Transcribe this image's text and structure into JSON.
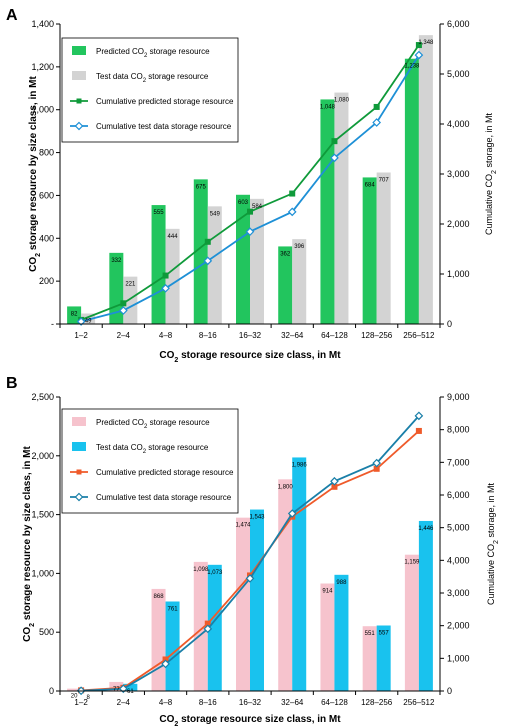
{
  "chart_data": [
    {
      "panel": "A",
      "type": "bar",
      "categories": [
        "1–2",
        "2–4",
        "4–8",
        "8–16",
        "16–32",
        "32–64",
        "64–128",
        "128–256",
        "256–512"
      ],
      "series": [
        {
          "name": "Predicted CO2 storage resource",
          "kind": "bar",
          "axis": "left",
          "color": "#22c55e",
          "values": [
            82,
            332,
            555,
            675,
            603,
            362,
            1048,
            684,
            1238
          ],
          "labels": [
            "82",
            "332",
            "555",
            "675",
            "603",
            "362",
            "1,048",
            "684",
            "1,238"
          ]
        },
        {
          "name": "Test data CO2 storage resource",
          "kind": "bar",
          "axis": "left",
          "color": "#d3d3d3",
          "values": [
            49,
            221,
            444,
            549,
            584,
            396,
            1080,
            707,
            1348
          ],
          "labels": [
            "49",
            "221",
            "444",
            "549",
            "584",
            "396",
            "1,080",
            "707",
            "1,348"
          ]
        },
        {
          "name": "Cumulative predicted storage resource",
          "kind": "line",
          "axis": "right",
          "color": "#0f9a3a",
          "marker": "square",
          "values": [
            82,
            414,
            969,
            1644,
            2247,
            2609,
            3657,
            4341,
            5579
          ]
        },
        {
          "name": "Cumulative test data storage resource",
          "kind": "line",
          "axis": "right",
          "color": "#1e90d6",
          "marker": "diamond",
          "values": [
            49,
            270,
            714,
            1263,
            1847,
            2243,
            3323,
            4030,
            5378
          ]
        }
      ],
      "ylim": [
        0,
        1400
      ],
      "y2lim": [
        0,
        6000
      ],
      "yticks": [
        "-",
        "200",
        "400",
        "600",
        "800",
        "1,000",
        "1,200",
        "1,400"
      ],
      "y2ticks": [
        "0",
        "1,000",
        "2,000",
        "3,000",
        "4,000",
        "5,000",
        "6,000"
      ],
      "xlabel": "CO2 storage resource size class, in Mt",
      "ylabel": "CO2 storage resource by size class, in Mt",
      "y2label": "Cumulative CO2 storage, in Mt",
      "legend": "top-left",
      "grid": false
    },
    {
      "panel": "B",
      "type": "bar",
      "categories": [
        "1–2",
        "2–4",
        "4–8",
        "8–16",
        "16–32",
        "32–64",
        "64–128",
        "128–256",
        "256–512"
      ],
      "series": [
        {
          "name": "Predicted CO2 storage resource",
          "kind": "bar",
          "axis": "left",
          "color": "#f6c3cd",
          "values": [
            20,
            77,
            868,
            1098,
            1474,
            1800,
            914,
            551,
            1159
          ],
          "labels": [
            "20",
            "77",
            "868",
            "1,098",
            "1,474",
            "1,800",
            "914",
            "551",
            "1,159"
          ]
        },
        {
          "name": "Test data CO2 storage resource",
          "kind": "bar",
          "axis": "left",
          "color": "#19c2ee",
          "values": [
            8,
            61,
            761,
            1073,
            1543,
            1986,
            988,
            557,
            1446
          ],
          "labels": [
            "8",
            "61",
            "761",
            "1,073",
            "1,543",
            "1,986",
            "988",
            "557",
            "1,446"
          ]
        },
        {
          "name": "Cumulative predicted storage resource",
          "kind": "line",
          "axis": "right",
          "color": "#ef5a2a",
          "marker": "square",
          "values": [
            20,
            97,
            965,
            2063,
            3537,
            5337,
            6251,
            6802,
            7961
          ]
        },
        {
          "name": "Cumulative test data storage resource",
          "kind": "line",
          "axis": "right",
          "color": "#1a7fa8",
          "marker": "diamond",
          "values": [
            8,
            69,
            830,
            1903,
            3446,
            5432,
            6420,
            6977,
            8423
          ]
        }
      ],
      "ylim": [
        0,
        2500
      ],
      "y2lim": [
        0,
        9000
      ],
      "yticks": [
        "0",
        "500",
        "1,000",
        "1,500",
        "2,000",
        "2,500"
      ],
      "y2ticks": [
        "0",
        "1,000",
        "2,000",
        "3,000",
        "4,000",
        "5,000",
        "6,000",
        "7,000",
        "8,000",
        "9,000"
      ],
      "xlabel": "CO2 storage resource size class, in Mt",
      "ylabel": "CO2 storage resource by size class, in Mt",
      "y2label": "Cumulative CO2 storage, in Mt",
      "legend": "top-left",
      "grid": false
    }
  ]
}
